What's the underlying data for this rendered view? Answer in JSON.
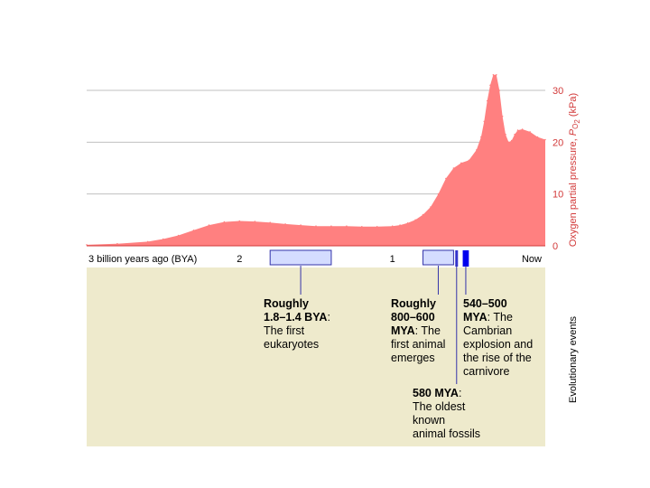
{
  "chart_data": {
    "type": "area",
    "xlabel": "",
    "ylabel": "Oxygen partial pressure, PO2 (kPa)",
    "ylabel_parts": [
      "Oxygen partial pressure, ",
      "P",
      "O",
      "2",
      " (kPa)"
    ],
    "xlim": [
      3.0,
      0.0
    ],
    "ylim": [
      0,
      30
    ],
    "grid": true,
    "y_ticks": [
      0,
      10,
      20,
      30
    ],
    "x_ticks": [
      {
        "value": 3.0,
        "label": "3 billion years ago (BYA)"
      },
      {
        "value": 2.0,
        "label": "2"
      },
      {
        "value": 1.0,
        "label": "1"
      },
      {
        "value": 0.0,
        "label": "Now"
      }
    ],
    "series": [
      {
        "color": "#ff8080",
        "x": [
          3.0,
          2.8,
          2.6,
          2.5,
          2.4,
          2.3,
          2.2,
          2.1,
          2.0,
          1.9,
          1.8,
          1.7,
          1.6,
          1.5,
          1.4,
          1.3,
          1.2,
          1.1,
          1.0,
          0.95,
          0.9,
          0.85,
          0.8,
          0.75,
          0.7,
          0.65,
          0.6,
          0.55,
          0.5,
          0.45,
          0.42,
          0.4,
          0.38,
          0.36,
          0.34,
          0.32,
          0.3,
          0.28,
          0.26,
          0.24,
          0.22,
          0.2,
          0.18,
          0.15,
          0.1,
          0.05,
          0.0
        ],
        "values": [
          0.2,
          0.4,
          0.8,
          1.3,
          2.0,
          3.0,
          4.0,
          4.6,
          4.8,
          4.7,
          4.5,
          4.2,
          4.0,
          3.8,
          3.8,
          3.8,
          3.7,
          3.7,
          3.8,
          4.0,
          4.4,
          5.0,
          6.0,
          7.5,
          10.0,
          13.0,
          15.0,
          16.0,
          16.5,
          18.5,
          21.0,
          24.0,
          28.0,
          31.0,
          33.0,
          33.0,
          30.0,
          25.0,
          21.5,
          20.0,
          20.3,
          21.5,
          22.3,
          22.5,
          22.0,
          21.0,
          20.5
        ]
      }
    ],
    "time_band_color": "#ffffff",
    "events_band_color": "#eeeacc",
    "events_axis_title": "Evolutionary events",
    "events": [
      {
        "range": [
          1.8,
          1.4
        ],
        "fill": "#d4dcff",
        "lines": [
          [
            {
              "t": "Roughly",
              "b": true
            }
          ],
          [
            {
              "t": "1.8–1.4 BYA",
              "b": true
            },
            {
              "t": ":",
              "b": false
            }
          ],
          [
            {
              "t": "The first",
              "b": false
            }
          ],
          [
            {
              "t": "eukaryotes",
              "b": false
            }
          ]
        ]
      },
      {
        "range": [
          0.8,
          0.6
        ],
        "fill": "#d4dcff",
        "lines": [
          [
            {
              "t": "Roughly",
              "b": true
            }
          ],
          [
            {
              "t": "800–600",
              "b": true
            }
          ],
          [
            {
              "t": "MYA",
              "b": true
            },
            {
              "t": ": The",
              "b": false
            }
          ],
          [
            {
              "t": "first animal",
              "b": false
            }
          ],
          [
            {
              "t": "emerges",
              "b": false
            }
          ]
        ]
      },
      {
        "range": [
          0.58,
          0.58
        ],
        "fill": "#3333cc",
        "lines": [
          [
            {
              "t": "580 MYA",
              "b": true
            },
            {
              "t": ":",
              "b": false
            }
          ],
          [
            {
              "t": "The oldest",
              "b": false
            }
          ],
          [
            {
              "t": "known",
              "b": false
            }
          ],
          [
            {
              "t": "animal fossils",
              "b": false
            }
          ]
        ]
      },
      {
        "range": [
          0.54,
          0.5
        ],
        "fill": "#0000ee",
        "lines": [
          [
            {
              "t": "540–500",
              "b": true
            }
          ],
          [
            {
              "t": "MYA",
              "b": true
            },
            {
              "t": ": The",
              "b": false
            }
          ],
          [
            {
              "t": "Cambrian",
              "b": false
            }
          ],
          [
            {
              "t": "explosion and",
              "b": false
            }
          ],
          [
            {
              "t": "the rise of the",
              "b": false
            }
          ],
          [
            {
              "t": "carnivore",
              "b": false
            }
          ]
        ]
      }
    ]
  }
}
